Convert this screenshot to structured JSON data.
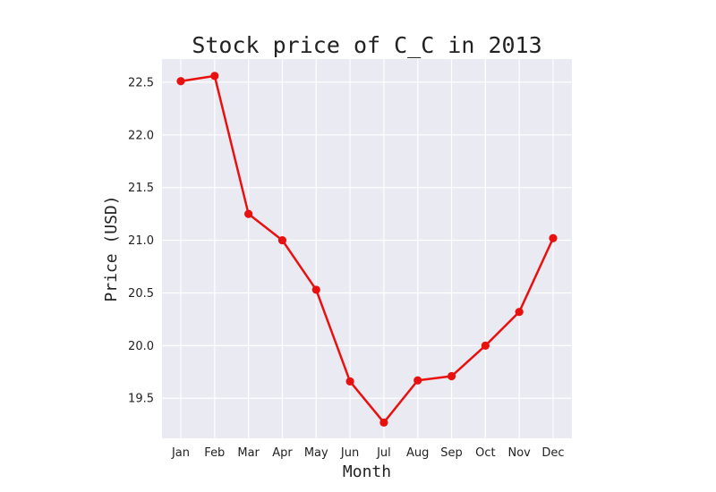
{
  "chart_data": {
    "type": "line",
    "title": "Stock price of C_C in 2013",
    "xlabel": "Month",
    "ylabel": "Price (USD)",
    "categories": [
      "Jan",
      "Feb",
      "Mar",
      "Apr",
      "May",
      "Jun",
      "Jul",
      "Aug",
      "Sep",
      "Oct",
      "Nov",
      "Dec"
    ],
    "series": [
      {
        "values": [
          22.51,
          22.56,
          21.25,
          21.0,
          20.53,
          19.66,
          19.27,
          19.67,
          19.71,
          20.0,
          20.32,
          21.02
        ],
        "color": "#e8110f"
      }
    ],
    "y_ticks": [
      19.5,
      20.0,
      20.5,
      21.0,
      21.5,
      22.0,
      22.5
    ],
    "y_tick_labels": [
      "19.5",
      "20.0",
      "20.5",
      "21.0",
      "21.5",
      "22.0",
      "22.5"
    ],
    "ylim": [
      19.12,
      22.72
    ],
    "grid": true,
    "background_color": "#eaeaf2",
    "grid_color": "#ffffff",
    "legend": false
  }
}
